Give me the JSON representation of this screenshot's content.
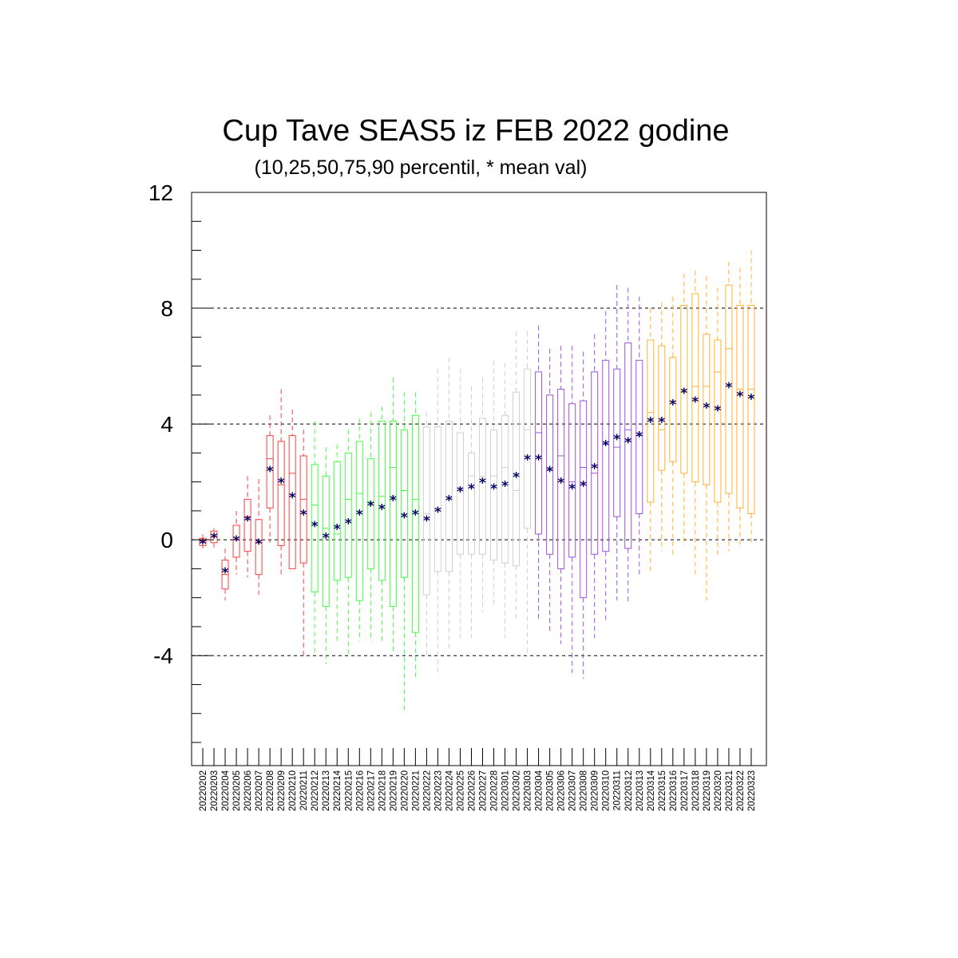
{
  "chart_data": {
    "type": "box",
    "title": "Cup Tave SEAS5 iz FEB 2022 godine",
    "subtitle": "(10,25,50,75,90 percentil, * mean val)",
    "xlabel": "",
    "ylabel": "",
    "ylim": [
      -7.8,
      12
    ],
    "yticks": [
      "12",
      "8",
      "4",
      "0",
      "-4"
    ],
    "grid_y": [
      12,
      8,
      4,
      0,
      -4
    ],
    "mean_marker": "*",
    "colors": {
      "red": "#ff4040",
      "green": "#40ff40",
      "grey": "#d0d0d0",
      "purple": "#a050e0",
      "orange": "#ffb030",
      "mean": "#000066"
    },
    "categories": [
      "20220202",
      "20220203",
      "20220204",
      "20220205",
      "20220206",
      "20220207",
      "20220208",
      "20220209",
      "20220210",
      "20220211",
      "20220212",
      "20220213",
      "20220214",
      "20220215",
      "20220216",
      "20220217",
      "20220218",
      "20220219",
      "20220220",
      "20220221",
      "20220222",
      "20220223",
      "20220224",
      "20220225",
      "20220226",
      "20220227",
      "20220228",
      "20220301",
      "20220302",
      "20220303",
      "20220304",
      "20220305",
      "20220306",
      "20220307",
      "20220308",
      "20220309",
      "20220310",
      "20220311",
      "20220312",
      "20220313",
      "20220314",
      "20220315",
      "20220316",
      "20220317",
      "20220318",
      "20220319",
      "20220320",
      "20220321",
      "20220322",
      "20220323"
    ],
    "boxes": [
      {
        "p10": -0.3,
        "p25": -0.2,
        "p50": -0.05,
        "p75": 0.05,
        "p90": 0.2,
        "mean": -0.1,
        "color": "red"
      },
      {
        "p10": -0.3,
        "p25": -0.1,
        "p50": 0.1,
        "p75": 0.3,
        "p90": 0.4,
        "mean": 0.1,
        "color": "red"
      },
      {
        "p10": -2.1,
        "p25": -1.7,
        "p50": -1.2,
        "p75": -0.7,
        "p90": -0.3,
        "mean": -1.1,
        "color": "red"
      },
      {
        "p10": -1.2,
        "p25": -0.6,
        "p50": 0.0,
        "p75": 0.5,
        "p90": 1.0,
        "mean": 0.0,
        "color": "red"
      },
      {
        "p10": -1.3,
        "p25": -0.4,
        "p50": 0.8,
        "p75": 1.4,
        "p90": 2.2,
        "mean": 0.7,
        "color": "red"
      },
      {
        "p10": -1.9,
        "p25": -1.2,
        "p50": -0.1,
        "p75": 0.7,
        "p90": 2.1,
        "mean": -0.1,
        "color": "red"
      },
      {
        "p10": -0.1,
        "p25": 1.1,
        "p50": 2.8,
        "p75": 3.6,
        "p90": 4.3,
        "mean": 2.4,
        "color": "red"
      },
      {
        "p10": -1.2,
        "p25": -0.2,
        "p50": 1.9,
        "p75": 3.4,
        "p90": 5.2,
        "mean": 2.0,
        "color": "red"
      },
      {
        "p10": -1.0,
        "p25": -1.0,
        "p50": 2.3,
        "p75": 3.6,
        "p90": 4.5,
        "mean": 1.5,
        "color": "red"
      },
      {
        "p10": -4.1,
        "p25": -0.8,
        "p50": 1.4,
        "p75": 2.9,
        "p90": 3.8,
        "mean": 0.9,
        "color": "red"
      },
      {
        "p10": -3.9,
        "p25": -1.8,
        "p50": 1.2,
        "p75": 2.6,
        "p90": 4.1,
        "mean": 0.5,
        "color": "green"
      },
      {
        "p10": -4.3,
        "p25": -2.3,
        "p50": 0.4,
        "p75": 2.2,
        "p90": 3.2,
        "mean": 0.1,
        "color": "green"
      },
      {
        "p10": -3.6,
        "p25": -1.4,
        "p50": 0.2,
        "p75": 2.7,
        "p90": 3.3,
        "mean": 0.4,
        "color": "green"
      },
      {
        "p10": -4.0,
        "p25": -1.3,
        "p50": 1.4,
        "p75": 3.0,
        "p90": 3.8,
        "mean": 0.6,
        "color": "green"
      },
      {
        "p10": -3.5,
        "p25": -2.1,
        "p50": 1.6,
        "p75": 3.4,
        "p90": 4.2,
        "mean": 0.9,
        "color": "green"
      },
      {
        "p10": -3.5,
        "p25": -1.0,
        "p50": 1.3,
        "p75": 2.8,
        "p90": 4.4,
        "mean": 1.2,
        "color": "green"
      },
      {
        "p10": -3.5,
        "p25": -1.4,
        "p50": 1.5,
        "p75": 4.1,
        "p90": 4.6,
        "mean": 1.1,
        "color": "green"
      },
      {
        "p10": -3.9,
        "p25": -2.3,
        "p50": 2.5,
        "p75": 4.1,
        "p90": 5.6,
        "mean": 1.4,
        "color": "green"
      },
      {
        "p10": -5.9,
        "p25": -1.3,
        "p50": 1.7,
        "p75": 3.8,
        "p90": 5.1,
        "mean": 0.8,
        "color": "green"
      },
      {
        "p10": -4.8,
        "p25": -3.2,
        "p50": 1.4,
        "p75": 4.3,
        "p90": 5.1,
        "mean": 0.9,
        "color": "green"
      },
      {
        "p10": -4.1,
        "p25": -1.9,
        "p50": 0.9,
        "p75": 3.9,
        "p90": 4.4,
        "mean": 0.7,
        "color": "grey"
      },
      {
        "p10": -4.7,
        "p25": -1.1,
        "p50": 1.0,
        "p75": 3.9,
        "p90": 5.9,
        "mean": 1.0,
        "color": "grey"
      },
      {
        "p10": -3.8,
        "p25": -1.1,
        "p50": 1.4,
        "p75": 4.1,
        "p90": 6.3,
        "mean": 1.4,
        "color": "grey"
      },
      {
        "p10": -3.5,
        "p25": -0.5,
        "p50": 1.8,
        "p75": 3.7,
        "p90": 5.9,
        "mean": 1.7,
        "color": "grey"
      },
      {
        "p10": -3.4,
        "p25": -0.5,
        "p50": 2.2,
        "p75": 3.0,
        "p90": 5.3,
        "mean": 1.8,
        "color": "grey"
      },
      {
        "p10": -2.5,
        "p25": -0.5,
        "p50": 2.2,
        "p75": 4.2,
        "p90": 5.6,
        "mean": 2.0,
        "color": "grey"
      },
      {
        "p10": -2.3,
        "p25": -0.7,
        "p50": 2.2,
        "p75": 3.8,
        "p90": 6.2,
        "mean": 1.8,
        "color": "grey"
      },
      {
        "p10": -3.4,
        "p25": -0.8,
        "p50": 2.5,
        "p75": 4.3,
        "p90": 6.1,
        "mean": 1.9,
        "color": "grey"
      },
      {
        "p10": -2.7,
        "p25": -0.9,
        "p50": 1.7,
        "p75": 5.1,
        "p90": 7.2,
        "mean": 2.2,
        "color": "grey"
      },
      {
        "p10": -3.9,
        "p25": 0.4,
        "p50": 3.8,
        "p75": 5.9,
        "p90": 7.2,
        "mean": 2.8,
        "color": "grey"
      },
      {
        "p10": -2.8,
        "p25": 0.2,
        "p50": 3.7,
        "p75": 5.8,
        "p90": 7.4,
        "mean": 2.8,
        "color": "purple"
      },
      {
        "p10": -3.2,
        "p25": -0.5,
        "p50": 2.4,
        "p75": 5.0,
        "p90": 6.6,
        "mean": 2.4,
        "color": "purple"
      },
      {
        "p10": -3.6,
        "p25": -1.0,
        "p50": 2.9,
        "p75": 5.2,
        "p90": 6.7,
        "mean": 2.0,
        "color": "purple"
      },
      {
        "p10": -4.6,
        "p25": -0.6,
        "p50": 2.0,
        "p75": 4.7,
        "p90": 6.7,
        "mean": 1.8,
        "color": "purple"
      },
      {
        "p10": -4.8,
        "p25": -2.0,
        "p50": 2.5,
        "p75": 4.8,
        "p90": 6.5,
        "mean": 1.9,
        "color": "purple"
      },
      {
        "p10": -3.4,
        "p25": -0.5,
        "p50": 2.3,
        "p75": 5.8,
        "p90": 7.1,
        "mean": 2.5,
        "color": "purple"
      },
      {
        "p10": -2.8,
        "p25": -0.4,
        "p50": 3.3,
        "p75": 6.2,
        "p90": 7.9,
        "mean": 3.3,
        "color": "purple"
      },
      {
        "p10": -2.1,
        "p25": 0.8,
        "p50": 3.2,
        "p75": 5.9,
        "p90": 8.8,
        "mean": 3.5,
        "color": "purple"
      },
      {
        "p10": -2.2,
        "p25": -0.3,
        "p50": 3.8,
        "p75": 6.8,
        "p90": 8.7,
        "mean": 3.4,
        "color": "purple"
      },
      {
        "p10": -1.3,
        "p25": 0.9,
        "p50": 3.6,
        "p75": 6.2,
        "p90": 8.4,
        "mean": 3.6,
        "color": "purple"
      },
      {
        "p10": -1.1,
        "p25": 1.3,
        "p50": 4.4,
        "p75": 6.9,
        "p90": 8.0,
        "mean": 4.1,
        "color": "orange"
      },
      {
        "p10": -0.4,
        "p25": 2.4,
        "p50": 3.8,
        "p75": 6.7,
        "p90": 8.2,
        "mean": 4.1,
        "color": "orange"
      },
      {
        "p10": -0.5,
        "p25": 2.7,
        "p50": 4.8,
        "p75": 6.3,
        "p90": 8.4,
        "mean": 4.7,
        "color": "orange"
      },
      {
        "p10": -0.2,
        "p25": 2.3,
        "p50": 5.1,
        "p75": 8.1,
        "p90": 9.2,
        "mean": 5.1,
        "color": "orange"
      },
      {
        "p10": -1.2,
        "p25": 2.0,
        "p50": 5.3,
        "p75": 8.5,
        "p90": 9.3,
        "mean": 4.8,
        "color": "orange"
      },
      {
        "p10": -2.1,
        "p25": 1.9,
        "p50": 5.3,
        "p75": 7.1,
        "p90": 9.1,
        "mean": 4.6,
        "color": "orange"
      },
      {
        "p10": -0.6,
        "p25": 1.3,
        "p50": 5.8,
        "p75": 6.9,
        "p90": 8.7,
        "mean": 4.5,
        "color": "orange"
      },
      {
        "p10": -0.4,
        "p25": 1.6,
        "p50": 6.6,
        "p75": 8.8,
        "p90": 9.6,
        "mean": 5.3,
        "color": "orange"
      },
      {
        "p10": -0.3,
        "p25": 1.1,
        "p50": 5.2,
        "p75": 8.1,
        "p90": 9.4,
        "mean": 5.0,
        "color": "orange"
      },
      {
        "p10": -0.2,
        "p25": 0.9,
        "p50": 5.2,
        "p75": 8.1,
        "p90": 10.0,
        "mean": 4.9,
        "color": "orange"
      }
    ]
  }
}
